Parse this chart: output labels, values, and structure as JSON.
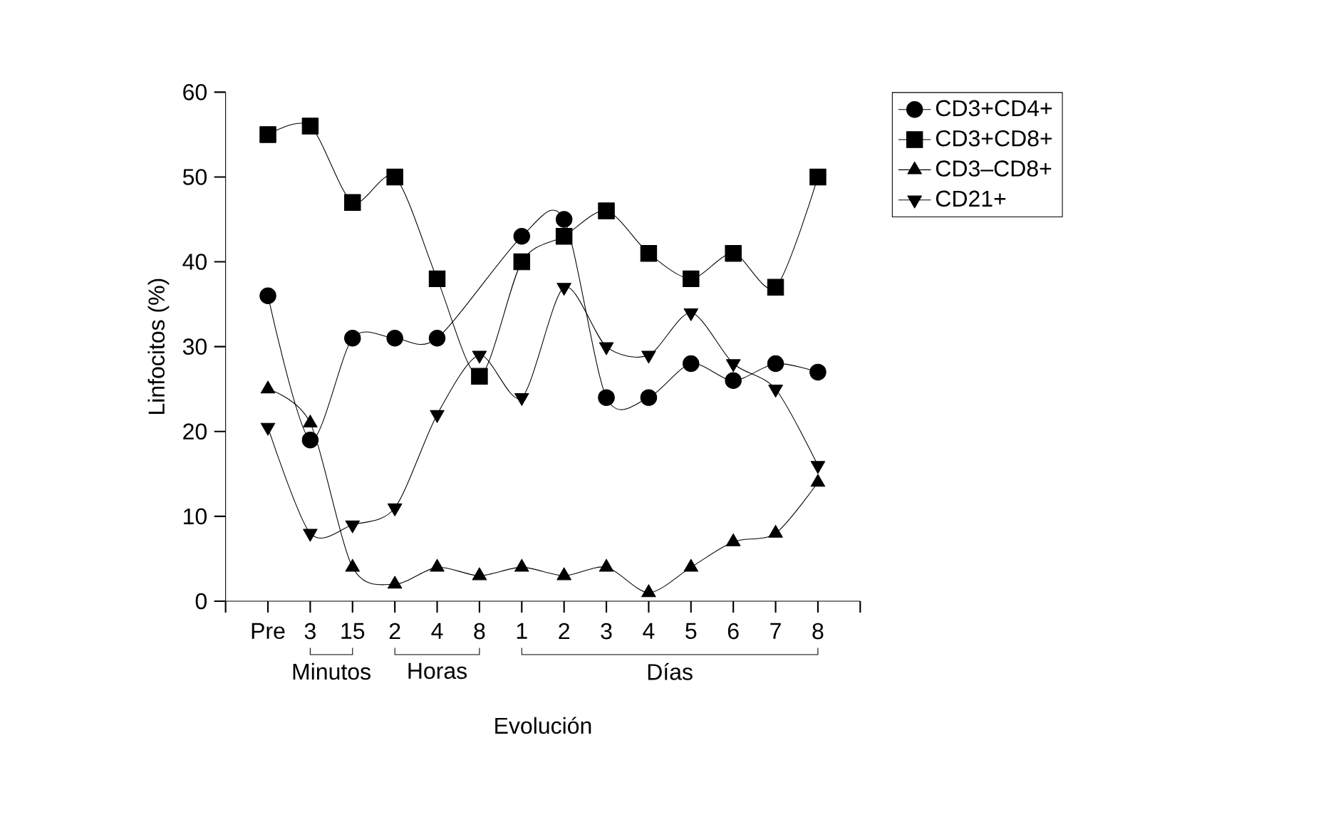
{
  "chart_data": {
    "type": "line",
    "categories": [
      "Pre",
      "3",
      "15",
      "2",
      "4",
      "8",
      "1",
      "2",
      "3",
      "4",
      "5",
      "6",
      "7",
      "8"
    ],
    "ylabel": "Linfocitos (%)",
    "xlabel": "Evolución",
    "annotations": [
      "Minutos",
      "Horas",
      "Días"
    ],
    "series": [
      {
        "name": "CD3+CD4+",
        "color": "#000000",
        "marker": "circle",
        "values": [
          36,
          19,
          31,
          31,
          31,
          null,
          43,
          45,
          24,
          24,
          28,
          26,
          28,
          27
        ]
      },
      {
        "name": "CD3+CD8+",
        "color": "#000000",
        "marker": "square",
        "values": [
          55,
          56,
          47,
          50,
          38,
          26.5,
          40,
          43,
          46,
          41,
          38,
          41,
          37,
          50
        ]
      },
      {
        "name": "CD3–CD8+",
        "color": "#000000",
        "marker": "triangle",
        "values": [
          25,
          21,
          4,
          2,
          4,
          3,
          4,
          3,
          4,
          1,
          4,
          7,
          8,
          14
        ]
      },
      {
        "name": "CD21+",
        "color": "#000000",
        "marker": "triangle-down",
        "values": [
          20.5,
          8,
          9,
          11,
          22,
          29,
          24,
          37,
          30,
          29,
          34,
          28,
          25,
          16
        ]
      }
    ],
    "ylim": [
      0,
      60
    ],
    "yticks": [
      0,
      10,
      20,
      30,
      40,
      50,
      60
    ],
    "legend": "top right",
    "grid": false
  }
}
